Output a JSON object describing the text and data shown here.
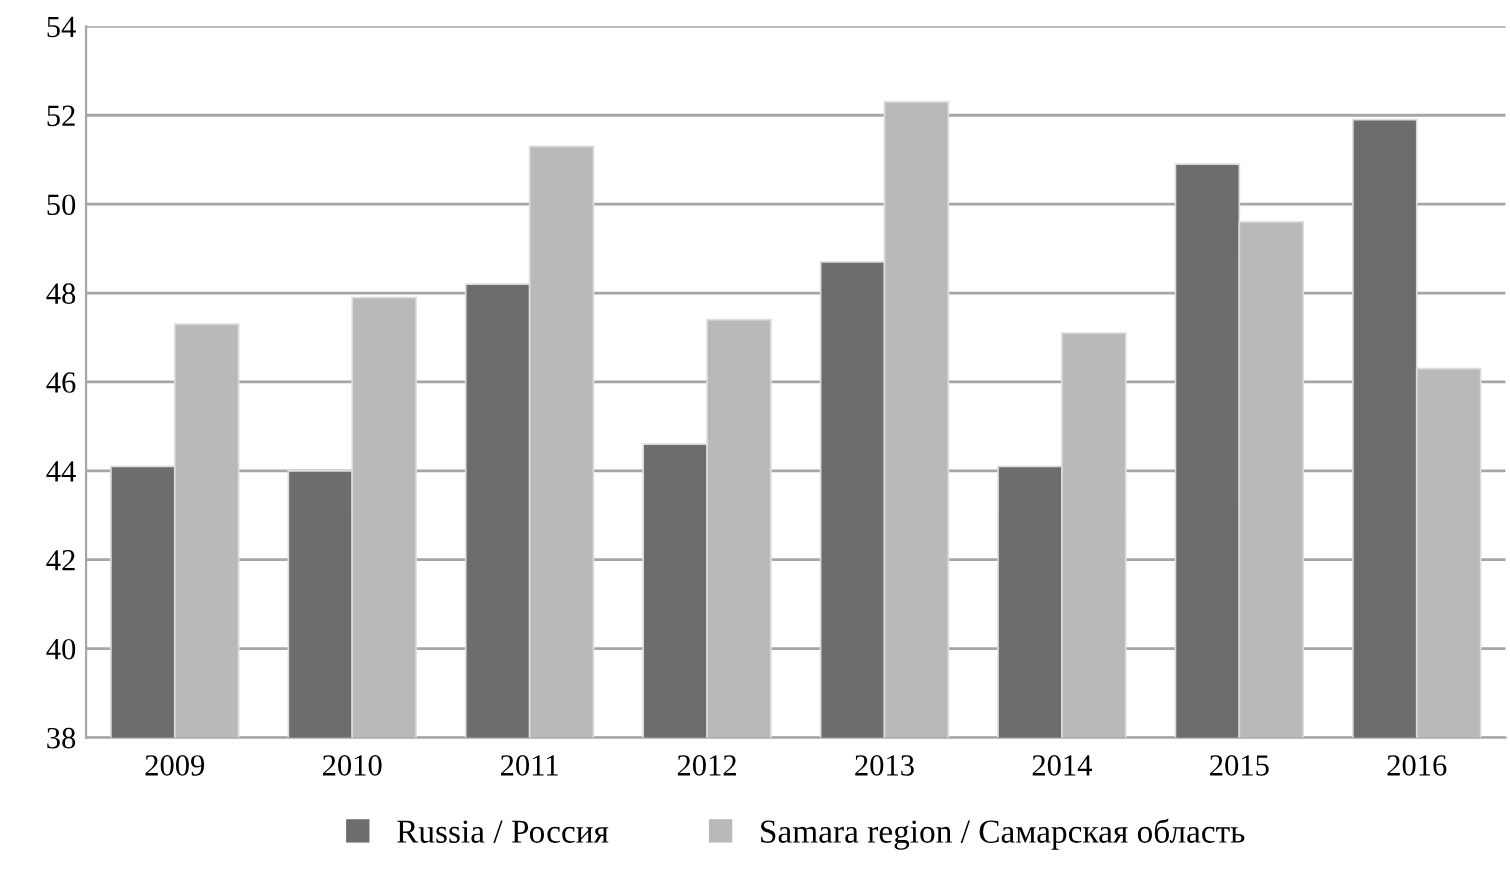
{
  "chart_data": {
    "type": "bar",
    "categories": [
      "2009",
      "2010",
      "2011",
      "2012",
      "2013",
      "2014",
      "2015",
      "2016"
    ],
    "series": [
      {
        "name": "Russia / Россия",
        "color": "#6d6d6d",
        "values": [
          44.1,
          44.0,
          48.2,
          44.6,
          48.7,
          44.1,
          50.9,
          51.9
        ]
      },
      {
        "name": "Samara region / Самарская область",
        "color": "#b9b9b9",
        "values": [
          47.3,
          47.9,
          51.3,
          47.4,
          52.3,
          47.1,
          49.6,
          46.3
        ]
      }
    ],
    "ylim": [
      38,
      54
    ],
    "yticks": [
      38,
      40,
      42,
      44,
      46,
      48,
      50,
      52,
      54
    ],
    "grid": "y",
    "legend": "bottom"
  }
}
